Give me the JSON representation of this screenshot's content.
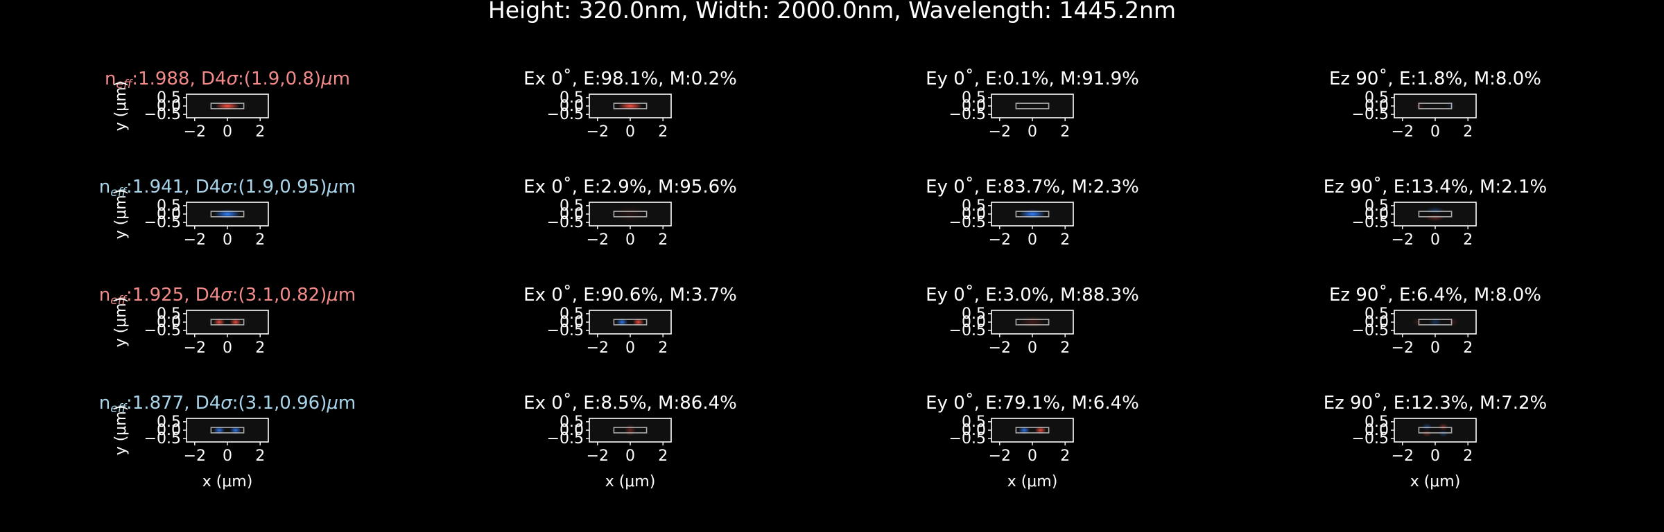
{
  "colors": {
    "background": "#000000",
    "axes_face": "#101010",
    "foreground": "#ffffff",
    "positive": "#ff5040",
    "negative": "#2f7fff",
    "title_red": "#f28a8a",
    "title_blue": "#a8d4ea",
    "core_outline": "#dddddd"
  },
  "chart_data": {
    "type": "heatmap",
    "suptitle": "Height: 320.0nm, Width: 2000.0nm, Wavelength: 1445.2nm",
    "xlabel": "x (μm)",
    "ylabel": "y (μm)",
    "xlim": [
      -2.5,
      2.5
    ],
    "ylim": [
      -0.7,
      0.7
    ],
    "xticks": [
      "−2",
      "0",
      "2"
    ],
    "yticks": [
      "0.5",
      "0.0",
      "−0.5"
    ],
    "core": {
      "width_um": 2.0,
      "height_um": 0.32
    },
    "rows": [
      {
        "neff": "1.988",
        "d4s": "(1.9,0.8)",
        "title_color": "red",
        "panels": [
          {
            "title": "Ex 0˚, E:98.1%, M:0.2%",
            "lobes": [
              {
                "x": 0.0,
                "sx": 0.75,
                "sy": 0.13,
                "amp": 1.0
              }
            ]
          },
          {
            "title": "Ey 0˚, E:0.1%, M:91.9%",
            "lobes": []
          },
          {
            "title": "Ez 90˚, E:1.8%, M:8.0%",
            "lobes": [
              {
                "x": -0.95,
                "sx": 0.3,
                "sy": 0.15,
                "amp": 0.12
              },
              {
                "x": 0.95,
                "sx": 0.3,
                "sy": 0.15,
                "amp": -0.12
              }
            ]
          }
        ]
      },
      {
        "neff": "1.941",
        "d4s": "(1.9,0.95)",
        "title_color": "blue",
        "panels": [
          {
            "title": "Ex 0˚, E:2.9%, M:95.6%",
            "lobes": [
              {
                "x": 0.0,
                "sx": 0.9,
                "sy": 0.3,
                "amp": 0.1
              }
            ]
          },
          {
            "title": "Ey 0˚, E:83.7%, M:2.3%",
            "lobes": [
              {
                "x": 0.0,
                "sx": 0.8,
                "sy": 0.15,
                "amp": -1.0
              }
            ]
          },
          {
            "title": "Ez 90˚, E:13.4%, M:2.1%",
            "lobes": [
              {
                "x": 0.0,
                "sx": 0.6,
                "sy": 0.12,
                "amp": -0.3,
                "y": 0.22
              },
              {
                "x": 0.0,
                "sx": 0.6,
                "sy": 0.12,
                "amp": 0.3,
                "y": -0.22
              }
            ]
          }
        ]
      },
      {
        "neff": "1.925",
        "d4s": "(3.1,0.82)",
        "title_color": "red",
        "panels": [
          {
            "title": "Ex 0˚, E:90.6%, M:3.7%",
            "lobes": [
              {
                "x": -0.5,
                "sx": 0.35,
                "sy": 0.13,
                "amp": -0.9
              },
              {
                "x": 0.5,
                "sx": 0.35,
                "sy": 0.13,
                "amp": 0.9
              }
            ]
          },
          {
            "title": "Ey 0˚, E:3.0%, M:88.3%",
            "lobes": [
              {
                "x": 0.0,
                "sx": 0.8,
                "sy": 0.2,
                "amp": 0.2
              }
            ]
          },
          {
            "title": "Ez 90˚, E:6.4%, M:8.0%",
            "lobes": [
              {
                "x": 0.0,
                "sx": 0.4,
                "sy": 0.15,
                "amp": -0.3
              },
              {
                "x": -1.1,
                "sx": 0.3,
                "sy": 0.15,
                "amp": 0.15
              },
              {
                "x": 1.1,
                "sx": 0.3,
                "sy": 0.15,
                "amp": 0.15
              }
            ]
          }
        ]
      },
      {
        "neff": "1.877",
        "d4s": "(3.1,0.96)",
        "title_color": "blue",
        "panels": [
          {
            "title": "Ex 0˚, E:8.5%, M:86.4%",
            "lobes": [
              {
                "x": 0.0,
                "sx": 0.35,
                "sy": 0.2,
                "amp": 0.35
              }
            ]
          },
          {
            "title": "Ey 0˚, E:79.1%, M:6.4%",
            "lobes": [
              {
                "x": -0.5,
                "sx": 0.35,
                "sy": 0.13,
                "amp": -0.9
              },
              {
                "x": 0.5,
                "sx": 0.35,
                "sy": 0.13,
                "amp": 0.9
              }
            ]
          },
          {
            "title": "Ez 90˚, E:12.3%, M:7.2%",
            "lobes": [
              {
                "x": -0.5,
                "sx": 0.3,
                "sy": 0.12,
                "amp": -0.4,
                "y": 0.2
              },
              {
                "x": 0.5,
                "sx": 0.3,
                "sy": 0.12,
                "amp": 0.4,
                "y": 0.2
              },
              {
                "x": -0.5,
                "sx": 0.3,
                "sy": 0.12,
                "amp": 0.3,
                "y": -0.2
              },
              {
                "x": 0.5,
                "sx": 0.3,
                "sy": 0.12,
                "amp": -0.3,
                "y": -0.2
              }
            ]
          }
        ]
      }
    ],
    "intensity_lobes": [
      [
        {
          "x": 0.0,
          "sx": 0.75,
          "sy": 0.13,
          "amp": 1.0
        }
      ],
      [
        {
          "x": 0.0,
          "sx": 0.8,
          "sy": 0.15,
          "amp": -1.0
        }
      ],
      [
        {
          "x": -0.5,
          "sx": 0.35,
          "sy": 0.13,
          "amp": 0.9
        },
        {
          "x": 0.5,
          "sx": 0.35,
          "sy": 0.13,
          "amp": 0.9
        }
      ],
      [
        {
          "x": -0.5,
          "sx": 0.35,
          "sy": 0.13,
          "amp": -0.9
        },
        {
          "x": 0.5,
          "sx": 0.35,
          "sy": 0.13,
          "amp": -0.9
        }
      ]
    ]
  }
}
